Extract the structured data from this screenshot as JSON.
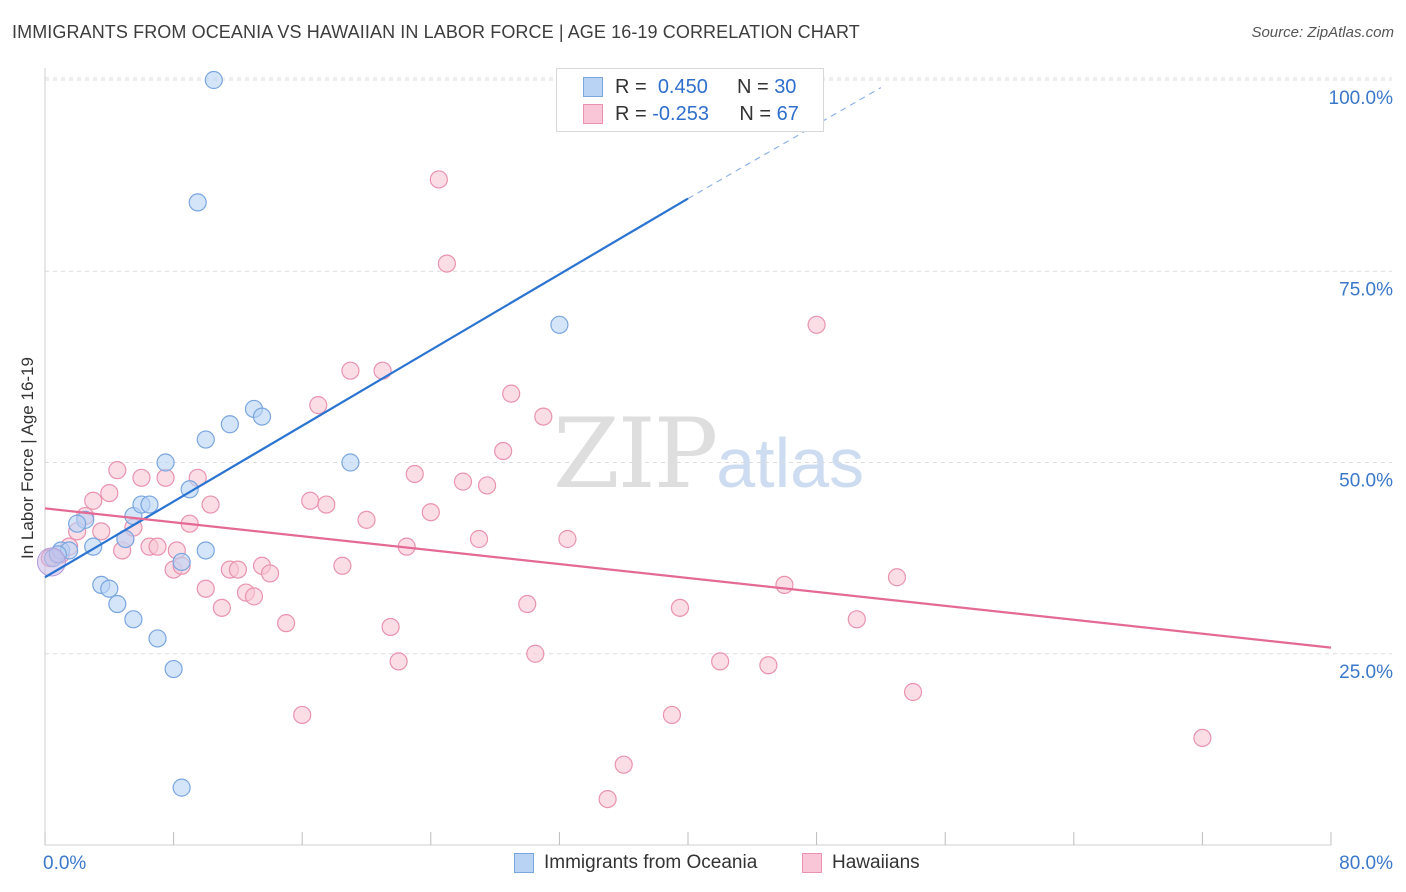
{
  "title": "IMMIGRANTS FROM OCEANIA VS HAWAIIAN IN LABOR FORCE | AGE 16-19 CORRELATION CHART",
  "source": "Source: ZipAtlas.com",
  "watermark": {
    "zip": "ZIP",
    "atlas": "atlas"
  },
  "legend_top": [
    {
      "r_label": "R =",
      "r_value": "0.450",
      "n_label": "N =",
      "n_value": "30"
    },
    {
      "r_label": "R =",
      "r_value": "-0.253",
      "n_label": "N =",
      "n_value": "67"
    }
  ],
  "legend_bottom": [
    "Immigrants from Oceania",
    "Hawaiians"
  ],
  "colors": {
    "blue_fill": "#b9d3f5",
    "blue_stroke": "#7aa6e0",
    "blue_line": "#2b74d1",
    "pink_fill": "#f8c6d6",
    "pink_stroke": "#e993b0",
    "pink_line": "#e46a95",
    "tick_label": "#3b78c9",
    "grid": "#dcdcdc"
  },
  "chart_data": {
    "type": "scatter",
    "title": "IMMIGRANTS FROM OCEANIA VS HAWAIIAN IN LABOR FORCE | AGE 16-19 CORRELATION CHART",
    "xlabel": "",
    "ylabel": "In Labor Force | Age 16-19",
    "xlim": [
      0,
      80
    ],
    "ylim": [
      0,
      104
    ],
    "x_tick_labels": [
      "0.0%",
      "80.0%"
    ],
    "y_ticks": [
      25,
      50,
      75,
      100
    ],
    "y_tick_labels": [
      "25.0%",
      "50.0%",
      "75.0%",
      "100.0%"
    ],
    "grid": true,
    "legend_placement": "top-center and bottom",
    "series": [
      {
        "name": "Immigrants from Oceania",
        "color": "#b9d3f5",
        "r": 0.45,
        "n": 30,
        "trend": {
          "x": [
            0,
            40
          ],
          "y": [
            35,
            84.5
          ],
          "dashed_to": [
            52,
            99
          ]
        },
        "points": [
          [
            0.5,
            37.5
          ],
          [
            1.0,
            38.5
          ],
          [
            1.5,
            38.5
          ],
          [
            2.5,
            42.5
          ],
          [
            3.0,
            39.0
          ],
          [
            3.5,
            34.0
          ],
          [
            4.0,
            33.5
          ],
          [
            4.5,
            31.5
          ],
          [
            5.0,
            40.0
          ],
          [
            5.5,
            43.0
          ],
          [
            5.5,
            29.5
          ],
          [
            6.0,
            44.5
          ],
          [
            6.5,
            44.5
          ],
          [
            7.0,
            27.0
          ],
          [
            7.5,
            50.0
          ],
          [
            8.0,
            23.0
          ],
          [
            8.5,
            37.0
          ],
          [
            8.5,
            7.5
          ],
          [
            9.0,
            46.5
          ],
          [
            9.5,
            84.0
          ],
          [
            10.0,
            38.5
          ],
          [
            10.0,
            53.0
          ],
          [
            10.5,
            100.0
          ],
          [
            11.5,
            55.0
          ],
          [
            13.0,
            57.0
          ],
          [
            13.5,
            56.0
          ],
          [
            19.0,
            50.0
          ],
          [
            32.0,
            68.0
          ],
          [
            2.0,
            42.0
          ],
          [
            0.8,
            38.0
          ]
        ]
      },
      {
        "name": "Hawaiians",
        "color": "#f8c6d6",
        "r": -0.253,
        "n": 67,
        "trend": {
          "x": [
            0,
            80
          ],
          "y": [
            44.0,
            25.8
          ]
        },
        "points": [
          [
            0.3,
            37.5
          ],
          [
            1.0,
            38.0
          ],
          [
            1.5,
            39.0
          ],
          [
            2.0,
            41.0
          ],
          [
            2.5,
            43.0
          ],
          [
            3.0,
            45.0
          ],
          [
            3.5,
            41.0
          ],
          [
            4.0,
            46.0
          ],
          [
            4.5,
            49.0
          ],
          [
            4.8,
            38.5
          ],
          [
            5.0,
            40.0
          ],
          [
            5.5,
            41.5
          ],
          [
            6.0,
            48.0
          ],
          [
            6.5,
            39.0
          ],
          [
            7.0,
            39.0
          ],
          [
            7.5,
            48.0
          ],
          [
            8.0,
            36.0
          ],
          [
            8.2,
            38.5
          ],
          [
            8.5,
            36.5
          ],
          [
            9.0,
            42.0
          ],
          [
            9.5,
            48.0
          ],
          [
            10.0,
            33.5
          ],
          [
            10.3,
            44.5
          ],
          [
            11.0,
            31.0
          ],
          [
            11.5,
            36.0
          ],
          [
            12.0,
            36.0
          ],
          [
            12.5,
            33.0
          ],
          [
            13.0,
            32.5
          ],
          [
            13.5,
            36.5
          ],
          [
            14.0,
            35.5
          ],
          [
            15.0,
            29.0
          ],
          [
            16.0,
            17.0
          ],
          [
            16.5,
            45.0
          ],
          [
            17.0,
            57.5
          ],
          [
            17.5,
            44.5
          ],
          [
            18.5,
            36.5
          ],
          [
            19.0,
            62.0
          ],
          [
            20.0,
            42.5
          ],
          [
            21.0,
            62.0
          ],
          [
            21.5,
            28.5
          ],
          [
            22.0,
            24.0
          ],
          [
            22.5,
            39.0
          ],
          [
            23.0,
            48.5
          ],
          [
            24.0,
            43.5
          ],
          [
            24.5,
            87.0
          ],
          [
            25.0,
            76.0
          ],
          [
            26.0,
            47.5
          ],
          [
            27.0,
            40.0
          ],
          [
            27.5,
            47.0
          ],
          [
            28.5,
            51.5
          ],
          [
            29.0,
            59.0
          ],
          [
            30.0,
            31.5
          ],
          [
            30.5,
            25.0
          ],
          [
            31.0,
            56.0
          ],
          [
            32.5,
            40.0
          ],
          [
            35.0,
            6.0
          ],
          [
            36.0,
            10.5
          ],
          [
            39.0,
            17.0
          ],
          [
            39.5,
            31.0
          ],
          [
            42.0,
            24.0
          ],
          [
            45.0,
            23.5
          ],
          [
            46.0,
            34.0
          ],
          [
            48.0,
            68.0
          ],
          [
            50.5,
            29.5
          ],
          [
            53.0,
            35.0
          ],
          [
            54.0,
            20.0
          ],
          [
            72.0,
            14.0
          ]
        ]
      }
    ]
  }
}
